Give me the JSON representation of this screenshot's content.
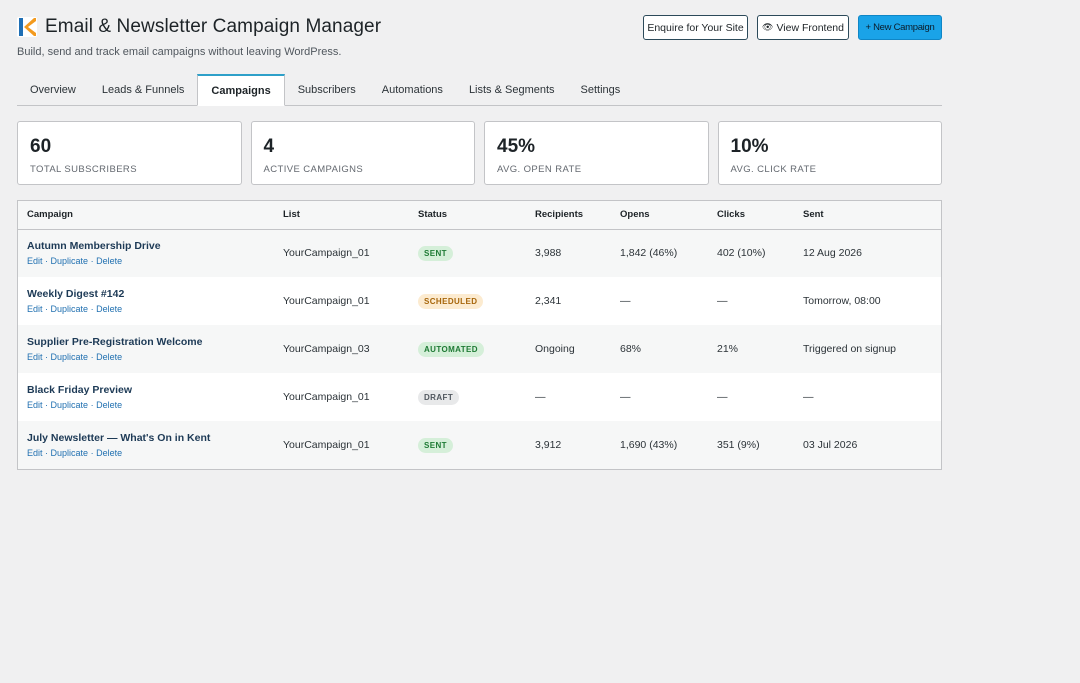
{
  "header": {
    "title": "Email & Newsletter Campaign Manager",
    "subtitle": "Build, send and track email campaigns without leaving WordPress.",
    "buttons": {
      "enquire": "Enquire for Your Site",
      "view_frontend": "View Frontend",
      "new_campaign": "+ New Campaign"
    }
  },
  "tabs": [
    {
      "label": "Overview"
    },
    {
      "label": "Leads & Funnels"
    },
    {
      "label": "Campaigns",
      "active": true
    },
    {
      "label": "Subscribers"
    },
    {
      "label": "Automations"
    },
    {
      "label": "Lists & Segments"
    },
    {
      "label": "Settings"
    }
  ],
  "stats": [
    {
      "value": "60",
      "label": "Total Subscribers"
    },
    {
      "value": "4",
      "label": "Active Campaigns"
    },
    {
      "value": "45%",
      "label": "Avg. Open Rate"
    },
    {
      "value": "10%",
      "label": "Avg. Click Rate"
    }
  ],
  "table": {
    "columns": [
      "Campaign",
      "List",
      "Status",
      "Recipients",
      "Opens",
      "Clicks",
      "Sent"
    ],
    "row_actions": {
      "edit": "Edit",
      "duplicate": "Duplicate",
      "delete": "Delete",
      "separator": "·"
    },
    "rows": [
      {
        "name": "Autumn Membership Drive",
        "list": "YourCampaign_01",
        "status": "Sent",
        "status_class": "sent",
        "recipients": "3,988",
        "opens": "1,842 (46%)",
        "clicks": "402 (10%)",
        "sent": "12 Aug 2026"
      },
      {
        "name": "Weekly Digest #142",
        "list": "YourCampaign_01",
        "status": "Scheduled",
        "status_class": "scheduled",
        "recipients": "2,341",
        "opens": "—",
        "clicks": "—",
        "sent": "Tomorrow, 08:00"
      },
      {
        "name": "Supplier Pre-Registration Welcome",
        "list": "YourCampaign_03",
        "status": "Automated",
        "status_class": "automated",
        "recipients": "Ongoing",
        "opens": "68%",
        "clicks": "21%",
        "sent": "Triggered on signup"
      },
      {
        "name": "Black Friday Preview",
        "list": "YourCampaign_01",
        "status": "Draft",
        "status_class": "draft",
        "recipients": "—",
        "opens": "—",
        "clicks": "—",
        "sent": "—"
      },
      {
        "name": "July Newsletter — What's On in Kent",
        "list": "YourCampaign_01",
        "status": "Sent",
        "status_class": "sent",
        "recipients": "3,912",
        "opens": "1,690 (43%)",
        "clicks": "351 (9%)",
        "sent": "03 Jul 2026"
      }
    ]
  },
  "colors": {
    "accent": "#2ea0c9",
    "primary_button": "#1aa3e8",
    "logo_orange": "#f39a1e",
    "logo_blue": "#1f6fb5"
  },
  "icons": {
    "logo": "k-logo-icon",
    "view": "eye-icon"
  }
}
